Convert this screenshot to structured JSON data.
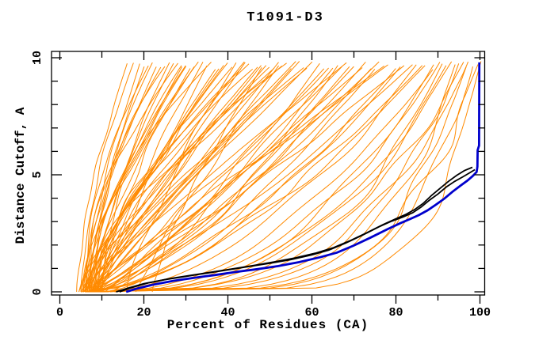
{
  "chart_data": {
    "type": "line",
    "title": "T1091-D3",
    "xlabel": "Percent of Residues (CA)",
    "ylabel": "Distance Cutoff, A",
    "xlim": [
      0,
      100
    ],
    "ylim": [
      0,
      10
    ],
    "grid": false,
    "legend": false,
    "x_major_ticks": [
      0,
      20,
      40,
      60,
      80,
      100
    ],
    "x_major_labels": [
      "0",
      "20",
      "40",
      "60",
      "80",
      "100"
    ],
    "x_minor_ticks": [
      10,
      30,
      50,
      70,
      90
    ],
    "y_major_ticks": [
      0,
      5,
      10
    ],
    "y_major_labels": [
      "0",
      "5",
      "10"
    ],
    "y_minor_ticks": [
      1,
      2,
      3,
      4,
      6,
      7,
      8,
      9
    ],
    "colors": {
      "ensemble": "#FF8A00",
      "highlight_black": "#000000",
      "highlight_blue": "#0000CC",
      "axis": "#000000"
    },
    "ensemble_curve_top_y": 9.7,
    "seed": 7,
    "ensemble_curves_start_end_shape": [
      [
        6,
        100.2,
        0.13
      ],
      [
        7,
        99.5,
        0.2
      ],
      [
        6.5,
        98,
        0.16
      ],
      [
        8,
        97,
        0.28
      ],
      [
        9,
        96,
        0.33
      ],
      [
        7.5,
        95,
        0.25
      ],
      [
        10,
        93.5,
        0.4
      ],
      [
        8.5,
        92,
        0.36
      ],
      [
        12,
        90.5,
        0.45
      ],
      [
        11,
        88.5,
        0.5
      ],
      [
        6,
        94,
        0.2
      ],
      [
        9.5,
        91,
        0.32
      ],
      [
        7,
        96.5,
        0.18
      ],
      [
        13,
        89,
        0.42
      ],
      [
        5,
        86,
        0.6
      ],
      [
        6,
        84,
        0.75
      ],
      [
        7,
        82,
        0.9
      ],
      [
        8,
        80,
        0.65
      ],
      [
        5.5,
        78,
        1.0
      ],
      [
        6.5,
        76,
        0.8
      ],
      [
        7.5,
        74,
        0.7
      ],
      [
        8.5,
        72,
        0.95
      ],
      [
        9,
        70,
        0.85
      ],
      [
        5,
        68,
        1.05
      ],
      [
        6,
        66,
        0.6
      ],
      [
        7,
        64,
        0.9
      ],
      [
        8,
        62,
        0.75
      ],
      [
        9,
        60,
        1.1
      ],
      [
        10,
        85,
        0.55
      ],
      [
        11,
        75,
        0.68
      ],
      [
        12,
        65,
        0.82
      ],
      [
        6,
        81,
        0.58
      ],
      [
        7,
        77,
        1.02
      ],
      [
        8,
        69,
        0.72
      ],
      [
        5.5,
        63,
        0.88
      ],
      [
        6.5,
        87,
        0.62
      ],
      [
        9.5,
        73,
        0.78
      ],
      [
        10.5,
        67,
        0.92
      ],
      [
        5,
        58,
        1.2
      ],
      [
        5.5,
        56,
        1.0
      ],
      [
        6,
        54,
        1.5
      ],
      [
        6.5,
        52,
        0.95
      ],
      [
        7,
        50,
        1.3
      ],
      [
        7.5,
        48,
        1.1
      ],
      [
        8,
        46,
        1.6
      ],
      [
        8.5,
        44,
        1.25
      ],
      [
        9,
        42,
        1.0
      ],
      [
        9.5,
        40,
        1.45
      ],
      [
        4.5,
        38,
        1.15
      ],
      [
        5.5,
        36,
        1.7
      ],
      [
        6,
        34,
        1.05
      ],
      [
        6.5,
        32,
        1.35
      ],
      [
        7,
        30,
        1.55
      ],
      [
        7.5,
        57,
        0.98
      ],
      [
        8,
        53,
        1.4
      ],
      [
        8.5,
        49,
        1.18
      ],
      [
        9,
        45,
        1.65
      ],
      [
        5,
        41,
        1.28
      ],
      [
        5.5,
        37,
        1.08
      ],
      [
        6,
        33,
        1.5
      ],
      [
        6.5,
        59,
        1.22
      ],
      [
        7,
        55,
        1.02
      ],
      [
        7.5,
        51,
        1.38
      ],
      [
        8,
        47,
        1.12
      ],
      [
        8.5,
        43,
        1.58
      ],
      [
        9,
        39,
        1.3
      ],
      [
        9.5,
        35,
        1.06
      ],
      [
        10,
        31,
        1.48
      ],
      [
        4.5,
        29,
        1.2
      ],
      [
        16,
        44,
        1.35
      ],
      [
        18,
        52,
        1.1
      ],
      [
        22,
        48,
        1.25
      ],
      [
        5,
        17.5,
        1.6
      ],
      [
        5.5,
        19,
        1.3
      ],
      [
        6,
        21,
        1.9
      ],
      [
        6.5,
        23,
        1.5
      ],
      [
        7,
        25,
        2.1
      ],
      [
        7.5,
        27,
        1.4
      ],
      [
        8,
        29,
        1.7
      ],
      [
        8.5,
        22,
        2.0
      ],
      [
        9,
        26,
        1.55
      ],
      [
        6,
        28,
        1.8
      ],
      [
        5.5,
        24,
        1.65
      ],
      [
        7,
        20,
        1.45
      ],
      [
        10,
        30,
        1.75
      ],
      [
        4,
        16,
        1.5
      ]
    ],
    "highlight_black_curves": [
      [
        [
          13.4,
          0
        ],
        [
          16,
          0.15
        ],
        [
          20,
          0.35
        ],
        [
          25,
          0.52
        ],
        [
          30,
          0.66
        ],
        [
          35,
          0.8
        ],
        [
          40,
          0.94
        ],
        [
          45,
          1.08
        ],
        [
          50,
          1.22
        ],
        [
          55,
          1.38
        ],
        [
          60,
          1.58
        ],
        [
          64,
          1.78
        ],
        [
          68,
          2.08
        ],
        [
          72,
          2.42
        ],
        [
          76,
          2.78
        ],
        [
          79,
          3.02
        ],
        [
          82,
          3.22
        ],
        [
          84,
          3.38
        ],
        [
          86,
          3.62
        ],
        [
          88,
          3.92
        ],
        [
          90,
          4.18
        ],
        [
          92,
          4.48
        ],
        [
          94,
          4.72
        ],
        [
          96,
          4.92
        ],
        [
          97.5,
          5.08
        ],
        [
          98.8,
          5.22
        ]
      ],
      [
        [
          14.2,
          0
        ],
        [
          17,
          0.18
        ],
        [
          21,
          0.38
        ],
        [
          26,
          0.56
        ],
        [
          31,
          0.7
        ],
        [
          36,
          0.84
        ],
        [
          41,
          0.98
        ],
        [
          46,
          1.12
        ],
        [
          51,
          1.28
        ],
        [
          56,
          1.45
        ],
        [
          61,
          1.66
        ],
        [
          65,
          1.88
        ],
        [
          69,
          2.18
        ],
        [
          73,
          2.52
        ],
        [
          77,
          2.88
        ],
        [
          80,
          3.12
        ],
        [
          82.5,
          3.32
        ],
        [
          84.5,
          3.52
        ],
        [
          86.5,
          3.78
        ],
        [
          88.5,
          4.12
        ],
        [
          90.5,
          4.42
        ],
        [
          92.5,
          4.72
        ],
        [
          94.5,
          4.98
        ],
        [
          96.3,
          5.18
        ],
        [
          98.2,
          5.32
        ]
      ]
    ],
    "highlight_blue_curves": [
      [
        [
          15.8,
          0
        ],
        [
          18,
          0.12
        ],
        [
          22,
          0.3
        ],
        [
          27,
          0.47
        ],
        [
          32,
          0.6
        ],
        [
          37,
          0.72
        ],
        [
          42,
          0.85
        ],
        [
          47,
          0.97
        ],
        [
          52,
          1.1
        ],
        [
          57,
          1.27
        ],
        [
          62,
          1.48
        ],
        [
          66,
          1.68
        ],
        [
          70,
          1.98
        ],
        [
          74,
          2.32
        ],
        [
          78,
          2.68
        ],
        [
          81,
          2.93
        ],
        [
          83.5,
          3.12
        ],
        [
          85.5,
          3.28
        ],
        [
          87.5,
          3.48
        ],
        [
          89.5,
          3.72
        ],
        [
          91.5,
          3.98
        ],
        [
          93.5,
          4.28
        ],
        [
          95.5,
          4.55
        ],
        [
          97,
          4.75
        ],
        [
          98.3,
          4.95
        ],
        [
          99.2,
          5.12
        ],
        [
          99.4,
          5.35
        ],
        [
          99.45,
          6.05
        ],
        [
          99.8,
          6.25
        ],
        [
          99.85,
          9.8
        ]
      ]
    ]
  }
}
